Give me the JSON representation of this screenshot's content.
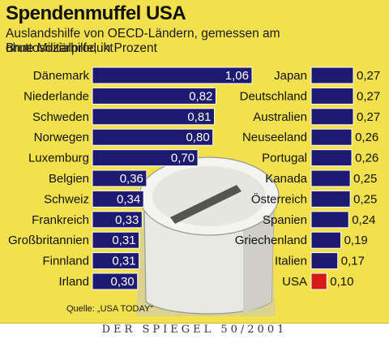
{
  "header": {
    "title": "Spendenmuffel USA",
    "subtitle_line1": "Auslandshilfe von OECD-Ländern, gemessen am Bruttosozialprodukt",
    "subtitle_line2": "ohne Militärhilfe, in Prozent"
  },
  "source": "Quelle: „USA TODAY“",
  "footer": "DER SPIEGEL 50/2001",
  "colors": {
    "background": "#f2e04d",
    "bar": "#1d1a72",
    "highlight_bar": "#d61a1a",
    "bar_border": "#ffffff",
    "label_text": "#111111"
  },
  "chart_data": [
    {
      "type": "bar",
      "orientation": "horizontal",
      "categories": [
        "Dänemark",
        "Niederlande",
        "Schweden",
        "Norwegen",
        "Luxemburg",
        "Belgien",
        "Schweiz",
        "Frankreich",
        "Großbritannien",
        "Finnland",
        "Irland"
      ],
      "values": [
        1.06,
        0.82,
        0.81,
        0.8,
        0.7,
        0.36,
        0.34,
        0.33,
        0.31,
        0.31,
        0.3
      ],
      "value_labels": [
        "1,06",
        "0,82",
        "0,81",
        "0,80",
        "0,70",
        "0,36",
        "0,34",
        "0,33",
        "0,31",
        "0,31",
        "0,30"
      ],
      "label_position": "inside-end",
      "title": "",
      "xlabel": "",
      "ylabel": ""
    },
    {
      "type": "bar",
      "orientation": "horizontal",
      "categories": [
        "Japan",
        "Deutschland",
        "Australien",
        "Neuseeland",
        "Portugal",
        "Kanada",
        "Österreich",
        "Spanien",
        "Griechenland",
        "Italien",
        "USA"
      ],
      "values": [
        0.27,
        0.27,
        0.27,
        0.26,
        0.26,
        0.25,
        0.25,
        0.24,
        0.19,
        0.17,
        0.1
      ],
      "value_labels": [
        "0,27",
        "0,27",
        "0,27",
        "0,26",
        "0,26",
        "0,25",
        "0,25",
        "0,24",
        "0,19",
        "0,17",
        "0,10"
      ],
      "highlight": "USA",
      "label_position": "outside-end",
      "title": "",
      "xlabel": "",
      "ylabel": ""
    }
  ]
}
